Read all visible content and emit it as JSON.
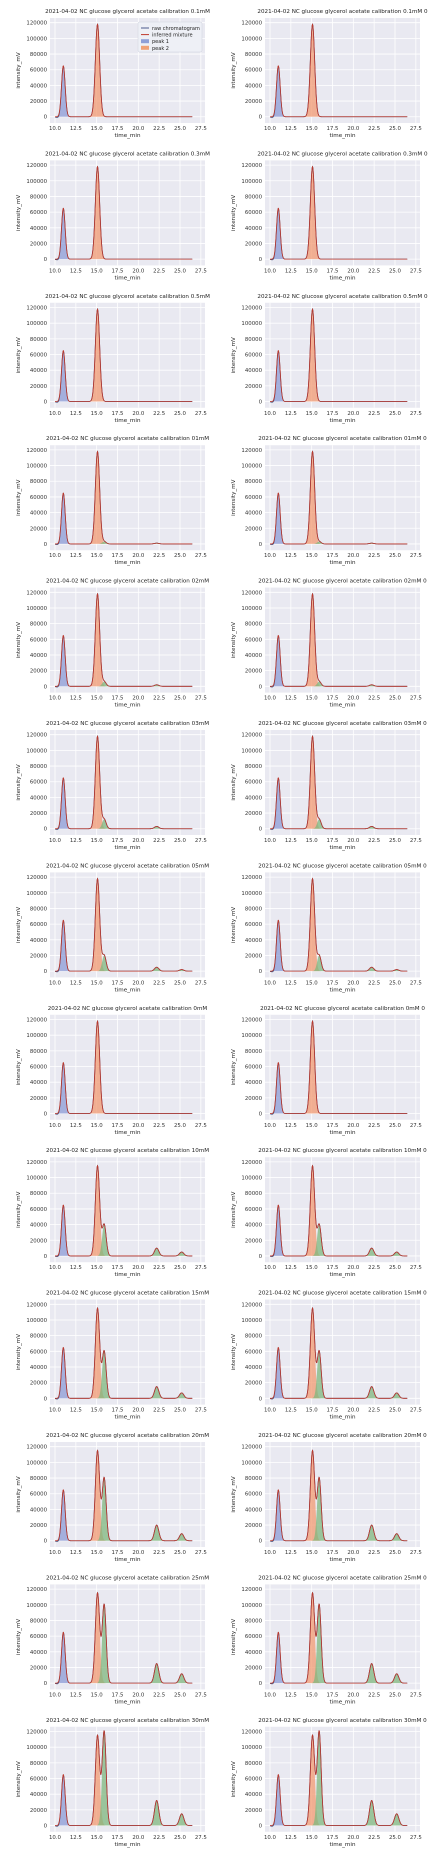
{
  "axes_common": {
    "xlabel": "time_min",
    "ylabel": "intensity_mV",
    "xlim": [
      9.4,
      28.0
    ],
    "ylim": [
      -8000,
      126000
    ],
    "xticks": [
      "10.0",
      "12.5",
      "15.0",
      "17.5",
      "20.0",
      "22.5",
      "25.0",
      "27.5"
    ],
    "xtick_values": [
      10.0,
      12.5,
      15.0,
      17.5,
      20.0,
      22.5,
      25.0,
      27.5
    ],
    "yticks": [
      "0",
      "20000",
      "40000",
      "60000",
      "80000",
      "100000",
      "120000"
    ],
    "ytick_values": [
      0,
      20000,
      40000,
      60000,
      80000,
      100000,
      120000
    ],
    "grid": true,
    "background": "#e9e9f1"
  },
  "legend": {
    "placement": "top-right",
    "entries": [
      {
        "label": "raw chromatogram",
        "color": "#4c5a8c"
      },
      {
        "label": "inferred mixture",
        "color": "#c0392b"
      },
      {
        "label": "peak 1",
        "color": "#8fa0d8"
      },
      {
        "label": "peak 2",
        "color": "#f0a277"
      }
    ]
  },
  "colors": {
    "raw": "#3b4a7a",
    "mixture": "#c0392b",
    "peak1": "#8c9bd6",
    "peak2": "#f29a72",
    "peak3": "#7fb77e"
  },
  "chart_data": [
    {
      "type": "line",
      "title": "2021-04-02 NC glucose glycerol acetate calibration 0.1mM",
      "peaks": [
        {
          "x": 11.0,
          "h": 65000
        },
        {
          "x": 15.1,
          "h": 118000
        }
      ]
    },
    {
      "type": "line",
      "title": "2021-04-02 NC glucose glycerol acetate calibration 0.1mM 0",
      "peaks": [
        {
          "x": 11.0,
          "h": 65000
        },
        {
          "x": 15.1,
          "h": 118000
        }
      ]
    },
    {
      "type": "line",
      "title": "2021-04-02 NC glucose glycerol acetate calibration 0.3mM",
      "peaks": [
        {
          "x": 11.0,
          "h": 65000
        },
        {
          "x": 15.1,
          "h": 118000
        }
      ]
    },
    {
      "type": "line",
      "title": "2021-04-02 NC glucose glycerol acetate calibration 0.3mM 0",
      "peaks": [
        {
          "x": 11.0,
          "h": 65000
        },
        {
          "x": 15.1,
          "h": 118000
        }
      ]
    },
    {
      "type": "line",
      "title": "2021-04-02 NC glucose glycerol acetate calibration 0.5mM",
      "peaks": [
        {
          "x": 11.0,
          "h": 65000
        },
        {
          "x": 15.1,
          "h": 118000
        }
      ]
    },
    {
      "type": "line",
      "title": "2021-04-02 NC glucose glycerol acetate calibration 0.5mM 0",
      "peaks": [
        {
          "x": 11.0,
          "h": 65000
        },
        {
          "x": 15.1,
          "h": 118000
        }
      ]
    },
    {
      "type": "line",
      "title": "2021-04-02 NC glucose glycerol acetate calibration 01mM",
      "peaks": [
        {
          "x": 11.0,
          "h": 65000
        },
        {
          "x": 15.1,
          "h": 118000
        },
        {
          "x": 15.9,
          "h": 3000
        },
        {
          "x": 22.2,
          "h": 1000
        }
      ]
    },
    {
      "type": "line",
      "title": "2021-04-02 NC glucose glycerol acetate calibration 01mM 0",
      "peaks": [
        {
          "x": 11.0,
          "h": 65000
        },
        {
          "x": 15.1,
          "h": 118000
        },
        {
          "x": 15.9,
          "h": 3000
        },
        {
          "x": 22.2,
          "h": 1000
        }
      ]
    },
    {
      "type": "line",
      "title": "2021-04-02 NC glucose glycerol acetate calibration 02mM",
      "peaks": [
        {
          "x": 11.0,
          "h": 65000
        },
        {
          "x": 15.1,
          "h": 118000
        },
        {
          "x": 15.9,
          "h": 6000
        },
        {
          "x": 22.2,
          "h": 2000
        }
      ]
    },
    {
      "type": "line",
      "title": "2021-04-02 NC glucose glycerol acetate calibration 02mM 0",
      "peaks": [
        {
          "x": 11.0,
          "h": 65000
        },
        {
          "x": 15.1,
          "h": 118000
        },
        {
          "x": 15.9,
          "h": 6000
        },
        {
          "x": 22.2,
          "h": 2000
        }
      ]
    },
    {
      "type": "line",
      "title": "2021-04-02 NC glucose glycerol acetate calibration 03mM",
      "peaks": [
        {
          "x": 11.0,
          "h": 65000
        },
        {
          "x": 15.1,
          "h": 118000
        },
        {
          "x": 15.9,
          "h": 12000
        },
        {
          "x": 22.2,
          "h": 3000
        }
      ]
    },
    {
      "type": "line",
      "title": "2021-04-02 NC glucose glycerol acetate calibration 03mM 0",
      "peaks": [
        {
          "x": 11.0,
          "h": 65000
        },
        {
          "x": 15.1,
          "h": 118000
        },
        {
          "x": 15.9,
          "h": 12000
        },
        {
          "x": 22.2,
          "h": 3000
        }
      ]
    },
    {
      "type": "line",
      "title": "2021-04-02 NC glucose glycerol acetate calibration 05mM",
      "peaks": [
        {
          "x": 11.0,
          "h": 65000
        },
        {
          "x": 15.1,
          "h": 118000
        },
        {
          "x": 15.9,
          "h": 20000
        },
        {
          "x": 22.2,
          "h": 5000
        },
        {
          "x": 25.2,
          "h": 2000
        }
      ]
    },
    {
      "type": "line",
      "title": "2021-04-02 NC glucose glycerol acetate calibration 05mM 0",
      "peaks": [
        {
          "x": 11.0,
          "h": 65000
        },
        {
          "x": 15.1,
          "h": 118000
        },
        {
          "x": 15.9,
          "h": 20000
        },
        {
          "x": 22.2,
          "h": 5000
        },
        {
          "x": 25.2,
          "h": 2000
        }
      ]
    },
    {
      "type": "line",
      "title": "2021-04-02 NC glucose glycerol acetate calibration 0mM",
      "peaks": [
        {
          "x": 11.0,
          "h": 65000
        },
        {
          "x": 15.1,
          "h": 118000
        }
      ]
    },
    {
      "type": "line",
      "title": "2021-04-02 NC glucose glycerol acetate calibration 0mM 0",
      "peaks": [
        {
          "x": 11.0,
          "h": 65000
        },
        {
          "x": 15.1,
          "h": 118000
        }
      ]
    },
    {
      "type": "line",
      "title": "2021-04-02 NC glucose glycerol acetate calibration 10mM",
      "peaks": [
        {
          "x": 11.0,
          "h": 65000
        },
        {
          "x": 15.1,
          "h": 115000
        },
        {
          "x": 15.9,
          "h": 40000
        },
        {
          "x": 22.2,
          "h": 10000
        },
        {
          "x": 25.2,
          "h": 5000
        }
      ]
    },
    {
      "type": "line",
      "title": "2021-04-02 NC glucose glycerol acetate calibration 10mM 0",
      "peaks": [
        {
          "x": 11.0,
          "h": 65000
        },
        {
          "x": 15.1,
          "h": 115000
        },
        {
          "x": 15.9,
          "h": 40000
        },
        {
          "x": 22.2,
          "h": 10000
        },
        {
          "x": 25.2,
          "h": 5000
        }
      ]
    },
    {
      "type": "line",
      "title": "2021-04-02 NC glucose glycerol acetate calibration 15mM",
      "peaks": [
        {
          "x": 11.0,
          "h": 65000
        },
        {
          "x": 15.1,
          "h": 115000
        },
        {
          "x": 15.9,
          "h": 60000
        },
        {
          "x": 22.2,
          "h": 15000
        },
        {
          "x": 25.2,
          "h": 7000
        }
      ]
    },
    {
      "type": "line",
      "title": "2021-04-02 NC glucose glycerol acetate calibration 15mM 0",
      "peaks": [
        {
          "x": 11.0,
          "h": 65000
        },
        {
          "x": 15.1,
          "h": 115000
        },
        {
          "x": 15.9,
          "h": 60000
        },
        {
          "x": 22.2,
          "h": 15000
        },
        {
          "x": 25.2,
          "h": 7000
        }
      ]
    },
    {
      "type": "line",
      "title": "2021-04-02 NC glucose glycerol acetate calibration 20mM",
      "peaks": [
        {
          "x": 11.0,
          "h": 65000
        },
        {
          "x": 15.1,
          "h": 115000
        },
        {
          "x": 15.9,
          "h": 80000
        },
        {
          "x": 22.2,
          "h": 20000
        },
        {
          "x": 25.2,
          "h": 9000
        }
      ]
    },
    {
      "type": "line",
      "title": "2021-04-02 NC glucose glycerol acetate calibration 20mM 0",
      "peaks": [
        {
          "x": 11.0,
          "h": 65000
        },
        {
          "x": 15.1,
          "h": 115000
        },
        {
          "x": 15.9,
          "h": 80000
        },
        {
          "x": 22.2,
          "h": 20000
        },
        {
          "x": 25.2,
          "h": 9000
        }
      ]
    },
    {
      "type": "line",
      "title": "2021-04-02 NC glucose glycerol acetate calibration 25mM",
      "peaks": [
        {
          "x": 11.0,
          "h": 65000
        },
        {
          "x": 15.1,
          "h": 115000
        },
        {
          "x": 15.9,
          "h": 100000
        },
        {
          "x": 22.2,
          "h": 25000
        },
        {
          "x": 25.2,
          "h": 12000
        }
      ]
    },
    {
      "type": "line",
      "title": "2021-04-02 NC glucose glycerol acetate calibration 25mM 0",
      "peaks": [
        {
          "x": 11.0,
          "h": 65000
        },
        {
          "x": 15.1,
          "h": 115000
        },
        {
          "x": 15.9,
          "h": 100000
        },
        {
          "x": 22.2,
          "h": 25000
        },
        {
          "x": 25.2,
          "h": 12000
        }
      ]
    },
    {
      "type": "line",
      "title": "2021-04-02 NC glucose glycerol acetate calibration 30mM",
      "peaks": [
        {
          "x": 11.0,
          "h": 65000
        },
        {
          "x": 15.1,
          "h": 115000
        },
        {
          "x": 15.9,
          "h": 120000
        },
        {
          "x": 22.2,
          "h": 32000
        },
        {
          "x": 25.2,
          "h": 15000
        }
      ]
    },
    {
      "type": "line",
      "title": "2021-04-02 NC glucose glycerol acetate calibration 30mM 0",
      "peaks": [
        {
          "x": 11.0,
          "h": 65000
        },
        {
          "x": 15.1,
          "h": 115000
        },
        {
          "x": 15.9,
          "h": 120000
        },
        {
          "x": 22.2,
          "h": 32000
        },
        {
          "x": 25.2,
          "h": 15000
        }
      ]
    }
  ]
}
